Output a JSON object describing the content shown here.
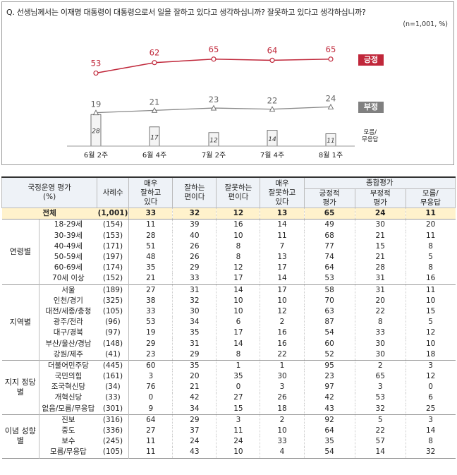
{
  "question": "Q. 선생님께서는 이재명 대통령이 대통령으로서 일을 잘하고 있다고 생각하십니까? 잘못하고 있다고 생각하십니까?",
  "note": "(n=1,001, %)",
  "chart_data": {
    "type": "line",
    "categories": [
      "6월 2주",
      "6월 4주",
      "7월 2주",
      "7월 4주",
      "8월 1주"
    ],
    "series": [
      {
        "name": "긍정",
        "values": [
          53,
          62,
          65,
          64,
          65
        ],
        "color": "#c0273a"
      },
      {
        "name": "부정",
        "values": [
          19,
          21,
          23,
          22,
          24
        ],
        "color": "#888888"
      },
      {
        "name": "모름/무응답",
        "values": [
          28,
          17,
          12,
          14,
          11
        ],
        "type": "bar"
      }
    ],
    "legend": {
      "pos": "긍정",
      "neg": "부정",
      "dk_line1": "모름/",
      "dk_line2": "무응답"
    }
  },
  "table": {
    "headers": {
      "category": "국정운영 평가",
      "category_unit": "(%)",
      "sample": "사례수",
      "c1": [
        "매우",
        "잘하고",
        "있다"
      ],
      "c2": [
        "잘하는",
        "편이다"
      ],
      "c3": [
        "잘못하는",
        "편이다"
      ],
      "c4": [
        "매우",
        "잘못하고",
        "있다"
      ],
      "summary": "종합평가",
      "c5": [
        "긍정적",
        "평가"
      ],
      "c6": [
        "부정적",
        "평가"
      ],
      "c7": [
        "모름/",
        "무응답"
      ]
    },
    "total": {
      "label": "전체",
      "n": "(1,001)",
      "values": [
        "33",
        "32",
        "12",
        "13",
        "65",
        "24",
        "11"
      ]
    },
    "groups": [
      {
        "name": "연령별",
        "rows": [
          {
            "label": "18-29세",
            "n": "(154)",
            "values": [
              "11",
              "39",
              "16",
              "14",
              "49",
              "30",
              "20"
            ]
          },
          {
            "label": "30-39세",
            "n": "(153)",
            "values": [
              "28",
              "40",
              "10",
              "11",
              "68",
              "21",
              "11"
            ]
          },
          {
            "label": "40-49세",
            "n": "(171)",
            "values": [
              "51",
              "26",
              "8",
              "7",
              "77",
              "15",
              "8"
            ]
          },
          {
            "label": "50-59세",
            "n": "(197)",
            "values": [
              "48",
              "26",
              "8",
              "13",
              "74",
              "21",
              "5"
            ]
          },
          {
            "label": "60-69세",
            "n": "(174)",
            "values": [
              "35",
              "29",
              "12",
              "17",
              "64",
              "28",
              "8"
            ]
          },
          {
            "label": "70세 이상",
            "n": "(152)",
            "values": [
              "21",
              "33",
              "17",
              "14",
              "53",
              "31",
              "16"
            ]
          }
        ]
      },
      {
        "name": "지역별",
        "rows": [
          {
            "label": "서울",
            "n": "(189)",
            "values": [
              "27",
              "31",
              "14",
              "17",
              "58",
              "31",
              "11"
            ]
          },
          {
            "label": "인천/경기",
            "n": "(325)",
            "values": [
              "38",
              "32",
              "10",
              "10",
              "70",
              "20",
              "10"
            ]
          },
          {
            "label": "대전/세종/충청",
            "n": "(105)",
            "values": [
              "33",
              "30",
              "10",
              "12",
              "63",
              "22",
              "15"
            ]
          },
          {
            "label": "광주/전라",
            "n": "(96)",
            "values": [
              "53",
              "34",
              "6",
              "2",
              "87",
              "8",
              "5"
            ]
          },
          {
            "label": "대구/경북",
            "n": "(97)",
            "values": [
              "19",
              "35",
              "17",
              "16",
              "54",
              "33",
              "12"
            ]
          },
          {
            "label": "부산/울산/경남",
            "n": "(148)",
            "values": [
              "29",
              "31",
              "14",
              "16",
              "60",
              "30",
              "10"
            ]
          },
          {
            "label": "강원/제주",
            "n": "(41)",
            "values": [
              "23",
              "29",
              "8",
              "22",
              "52",
              "30",
              "18"
            ]
          }
        ]
      },
      {
        "name": "지지 정당별",
        "rows": [
          {
            "label": "더불어민주당",
            "n": "(445)",
            "values": [
              "60",
              "35",
              "1",
              "1",
              "95",
              "2",
              "3"
            ]
          },
          {
            "label": "국민의힘",
            "n": "(161)",
            "values": [
              "3",
              "20",
              "35",
              "30",
              "23",
              "65",
              "12"
            ]
          },
          {
            "label": "조국혁신당",
            "n": "(34)",
            "values": [
              "76",
              "21",
              "0",
              "3",
              "97",
              "3",
              "0"
            ]
          },
          {
            "label": "개혁신당",
            "n": "(33)",
            "values": [
              "0",
              "42",
              "27",
              "26",
              "42",
              "53",
              "6"
            ]
          },
          {
            "label": "없음/모름/무응답",
            "n": "(301)",
            "values": [
              "9",
              "34",
              "15",
              "18",
              "43",
              "32",
              "25"
            ]
          }
        ]
      },
      {
        "name": "이념 성향별",
        "rows": [
          {
            "label": "진보",
            "n": "(316)",
            "values": [
              "64",
              "29",
              "3",
              "2",
              "92",
              "5",
              "3"
            ]
          },
          {
            "label": "중도",
            "n": "(336)",
            "values": [
              "27",
              "37",
              "11",
              "10",
              "64",
              "22",
              "14"
            ]
          },
          {
            "label": "보수",
            "n": "(245)",
            "values": [
              "11",
              "24",
              "24",
              "33",
              "35",
              "57",
              "8"
            ]
          },
          {
            "label": "모름/무응답",
            "n": "(105)",
            "values": [
              "11",
              "43",
              "10",
              "4",
              "54",
              "14",
              "32"
            ]
          }
        ]
      }
    ]
  }
}
